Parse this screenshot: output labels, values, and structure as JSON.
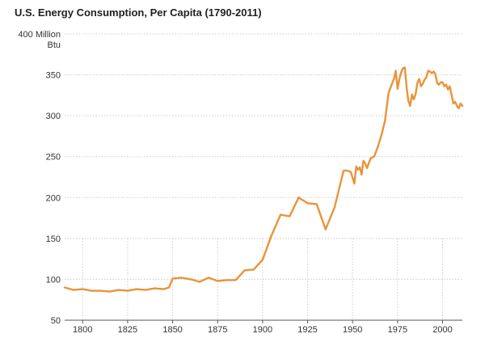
{
  "chart_data": {
    "type": "line",
    "title": "U.S. Energy Consumption, Per Capita (1790-2011)",
    "y_unit_line1": "400 Million",
    "y_unit_line2": "Btu",
    "xlim": [
      1790,
      2011
    ],
    "ylim": [
      50,
      400
    ],
    "x_ticks": [
      1800,
      1825,
      1850,
      1875,
      1900,
      1925,
      1950,
      1975,
      2000
    ],
    "y_ticks": [
      50,
      100,
      150,
      200,
      250,
      300,
      350,
      400
    ],
    "x_gridlines": [
      1800,
      1825,
      1850,
      1875,
      1900,
      1925,
      1950,
      1975,
      2000
    ],
    "grid": true,
    "legend": "none",
    "line_color": "#E8943A",
    "series": [
      {
        "x": [
          1790,
          1795,
          1800,
          1805,
          1810,
          1815,
          1820,
          1825,
          1830,
          1835,
          1840,
          1845,
          1848,
          1850,
          1855,
          1860,
          1865,
          1870,
          1875,
          1880,
          1885,
          1890,
          1895,
          1900,
          1905,
          1910,
          1915,
          1920,
          1925,
          1930,
          1935,
          1940,
          1945,
          1947,
          1949,
          1951,
          1952,
          1953,
          1954,
          1955,
          1956,
          1957,
          1958,
          1960,
          1962,
          1964,
          1966,
          1968,
          1970,
          1972,
          1973,
          1974,
          1975,
          1976,
          1977,
          1978,
          1979,
          1980,
          1981,
          1982,
          1983,
          1984,
          1985,
          1986,
          1987,
          1988,
          1989,
          1990,
          1991,
          1992,
          1993,
          1994,
          1995,
          1996,
          1997,
          1998,
          1999,
          2000,
          2001,
          2002,
          2003,
          2004,
          2005,
          2006,
          2007,
          2008,
          2009,
          2010,
          2011
        ],
        "y": [
          90,
          87,
          88,
          86,
          86,
          85,
          87,
          86,
          88,
          87,
          89,
          88,
          90,
          101,
          102,
          100,
          97,
          102,
          98,
          99,
          99,
          111,
          112,
          124,
          154,
          179,
          177,
          200,
          193,
          192,
          161,
          188,
          233,
          233,
          231,
          217,
          238,
          234,
          237,
          228,
          245,
          242,
          236,
          248,
          250,
          262,
          276,
          294,
          328,
          340,
          345,
          355,
          333,
          345,
          353,
          358,
          359,
          335,
          318,
          312,
          326,
          320,
          326,
          340,
          345,
          336,
          339,
          344,
          347,
          355,
          354,
          352,
          354,
          351,
          340,
          338,
          341,
          341,
          336,
          338,
          332,
          336,
          326,
          315,
          317,
          312,
          309,
          315,
          312
        ]
      }
    ]
  }
}
